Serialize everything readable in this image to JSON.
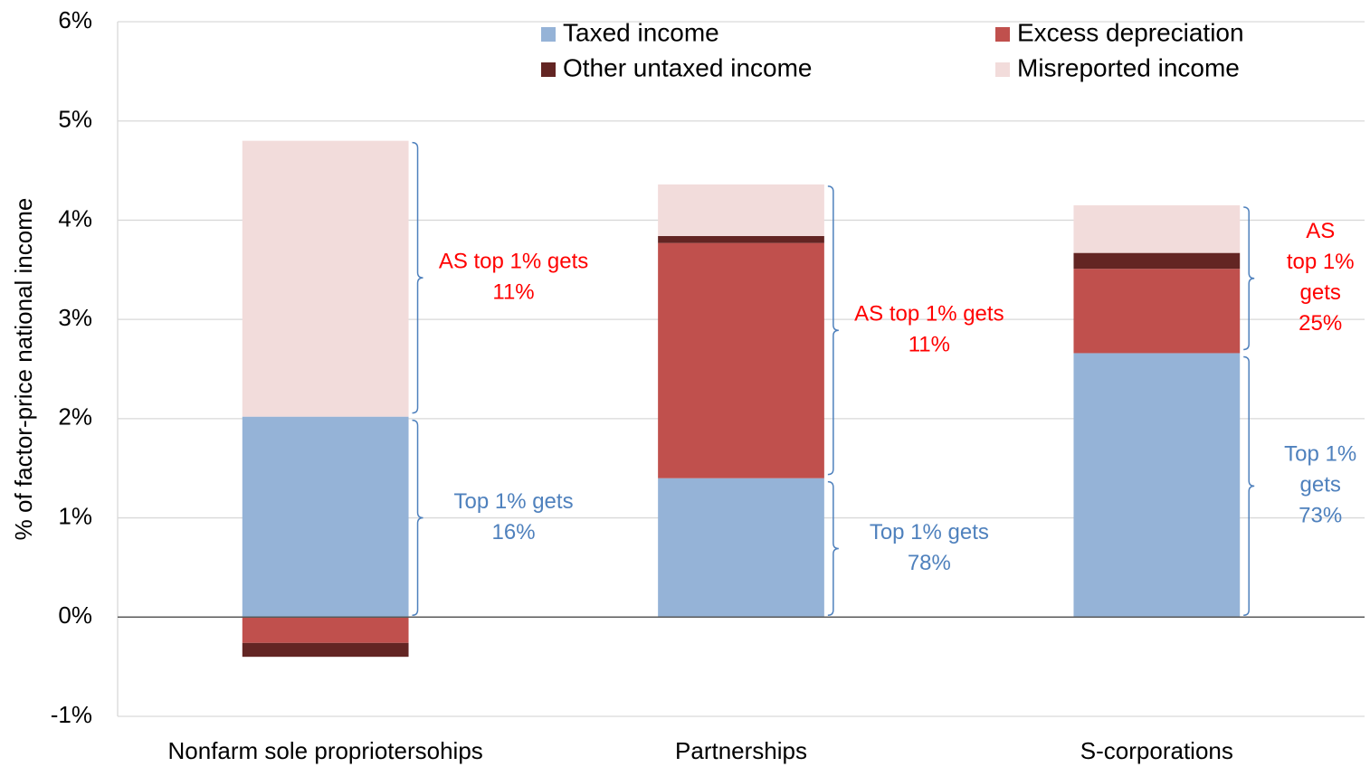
{
  "chart_data": {
    "type": "stacked_bar",
    "ylabel": "% of factor-price national income",
    "categories": [
      "Nonfarm sole propriotersohips",
      "Partnerships",
      "S-corporations"
    ],
    "series": [
      {
        "name": "Taxed income",
        "color": "#95b3d7",
        "values": [
          2.02,
          1.4,
          2.66
        ]
      },
      {
        "name": "Excess depreciation",
        "color": "#c0504d",
        "values": [
          -0.26,
          2.37,
          0.85
        ]
      },
      {
        "name": "Other untaxed income",
        "color": "#632523",
        "values": [
          -0.14,
          0.07,
          0.16
        ]
      },
      {
        "name": "Misreported income",
        "color": "#f2dcdb",
        "values": [
          2.78,
          0.52,
          0.48
        ]
      }
    ],
    "ylim": [
      -1,
      6
    ],
    "yticks": [
      {
        "value": -1,
        "label": "-1%"
      },
      {
        "value": 0,
        "label": "0%"
      },
      {
        "value": 1,
        "label": "1%"
      },
      {
        "value": 2,
        "label": "2%"
      },
      {
        "value": 3,
        "label": "3%"
      },
      {
        "value": 4,
        "label": "4%"
      },
      {
        "value": 5,
        "label": "5%"
      },
      {
        "value": 6,
        "label": "6%"
      }
    ],
    "grid": true,
    "legend": "top",
    "annotations": [
      {
        "lines": [
          "AS top 1% gets",
          "11%"
        ],
        "color": "#ff0000"
      },
      {
        "lines": [
          "Top 1% gets",
          "16%"
        ],
        "color": "#4f81bd"
      },
      {
        "lines": [
          "AS top 1% gets",
          "11%"
        ],
        "color": "#ff0000"
      },
      {
        "lines": [
          "Top 1% gets",
          "78%"
        ],
        "color": "#4f81bd"
      },
      {
        "lines": [
          "AS",
          "top 1%",
          "gets",
          "25%"
        ],
        "color": "#ff0000"
      },
      {
        "lines": [
          "Top 1%",
          "gets",
          "73%"
        ],
        "color": "#4f81bd"
      }
    ]
  }
}
